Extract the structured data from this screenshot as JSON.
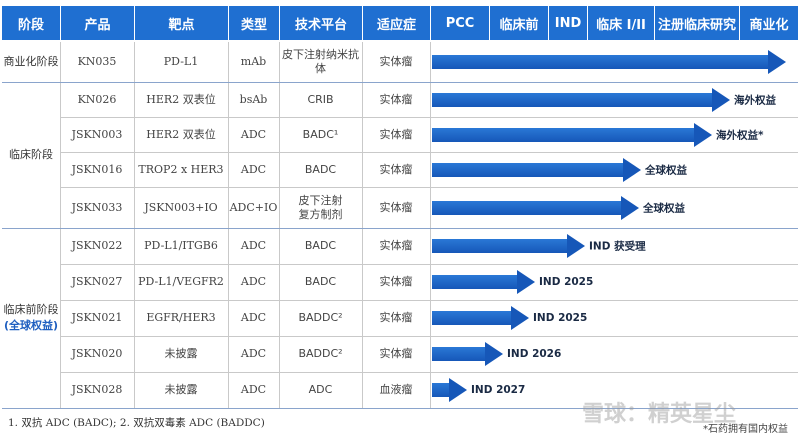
{
  "headers": {
    "stage": "阶段",
    "product": "产品",
    "target": "靶点",
    "type": "类型",
    "platform": "技术平台",
    "indication": "适应症",
    "phases": [
      "PCC",
      "临床前",
      "IND",
      "临床 I/II",
      "注册临床研究",
      "商业化"
    ]
  },
  "groups": [
    {
      "name": "商业化阶段",
      "sub": ""
    },
    {
      "name": "临床阶段",
      "sub": ""
    },
    {
      "name": "临床前阶段",
      "sub": "(全球权益)"
    }
  ],
  "rows": [
    {
      "product": "KN035",
      "target": "PD-L1",
      "type": "mAb",
      "platform": "皮下注射纳米抗体",
      "indication": "实体瘤",
      "arrow_label": "",
      "progress_phase": 6.0
    },
    {
      "product": "KN026",
      "target": "HER2 双表位",
      "type": "bsAb",
      "platform": "CRIB",
      "indication": "实体瘤",
      "arrow_label": "海外权益",
      "progress_phase": 5.05
    },
    {
      "product": "JSKN003",
      "target": "HER2 双表位",
      "type": "ADC",
      "platform": "BADC¹",
      "indication": "实体瘤",
      "arrow_label": "海外权益*",
      "progress_phase": 4.75
    },
    {
      "product": "JSKN016",
      "target": "TROP2 x HER3",
      "type": "ADC",
      "platform": "BADC",
      "indication": "实体瘤",
      "arrow_label": "全球权益",
      "progress_phase": 3.55
    },
    {
      "product": "JSKN033",
      "target": "JSKN003+IO",
      "type": "ADC+IO",
      "platform": "皮下注射\n复方制剂",
      "indication": "实体瘤",
      "arrow_label": "全球权益",
      "progress_phase": 3.5
    },
    {
      "product": "JSKN022",
      "target": "PD-L1/ITGB6",
      "type": "ADC",
      "platform": "BADC",
      "indication": "实体瘤",
      "arrow_label": "IND 获受理",
      "progress_phase": 2.6
    },
    {
      "product": "JSKN027",
      "target": "PD-L1/VEGFR2",
      "type": "ADC",
      "platform": "BADC",
      "indication": "实体瘤",
      "arrow_label": "IND 2025",
      "progress_phase": 1.75
    },
    {
      "product": "JSKN021",
      "target": "EGFR/HER3",
      "type": "ADC",
      "platform": "BADDC²",
      "indication": "实体瘤",
      "arrow_label": "IND 2025",
      "progress_phase": 1.65
    },
    {
      "product": "JSKN020",
      "target": "未披露",
      "type": "ADC",
      "platform": "BADDC²",
      "indication": "实体瘤",
      "arrow_label": "IND 2026",
      "progress_phase": 1.2
    },
    {
      "product": "JSKN028",
      "target": "未披露",
      "type": "ADC",
      "platform": "ADC",
      "indication": "血液瘤",
      "arrow_label": "IND 2027",
      "progress_phase": 0.6
    }
  ],
  "footnote": "1. 双抗 ADC (BADC);   2. 双抗双毒素 ADC (BADDC)",
  "note": "*石药拥有国内权益",
  "watermark": "雪球：精英星尘"
}
